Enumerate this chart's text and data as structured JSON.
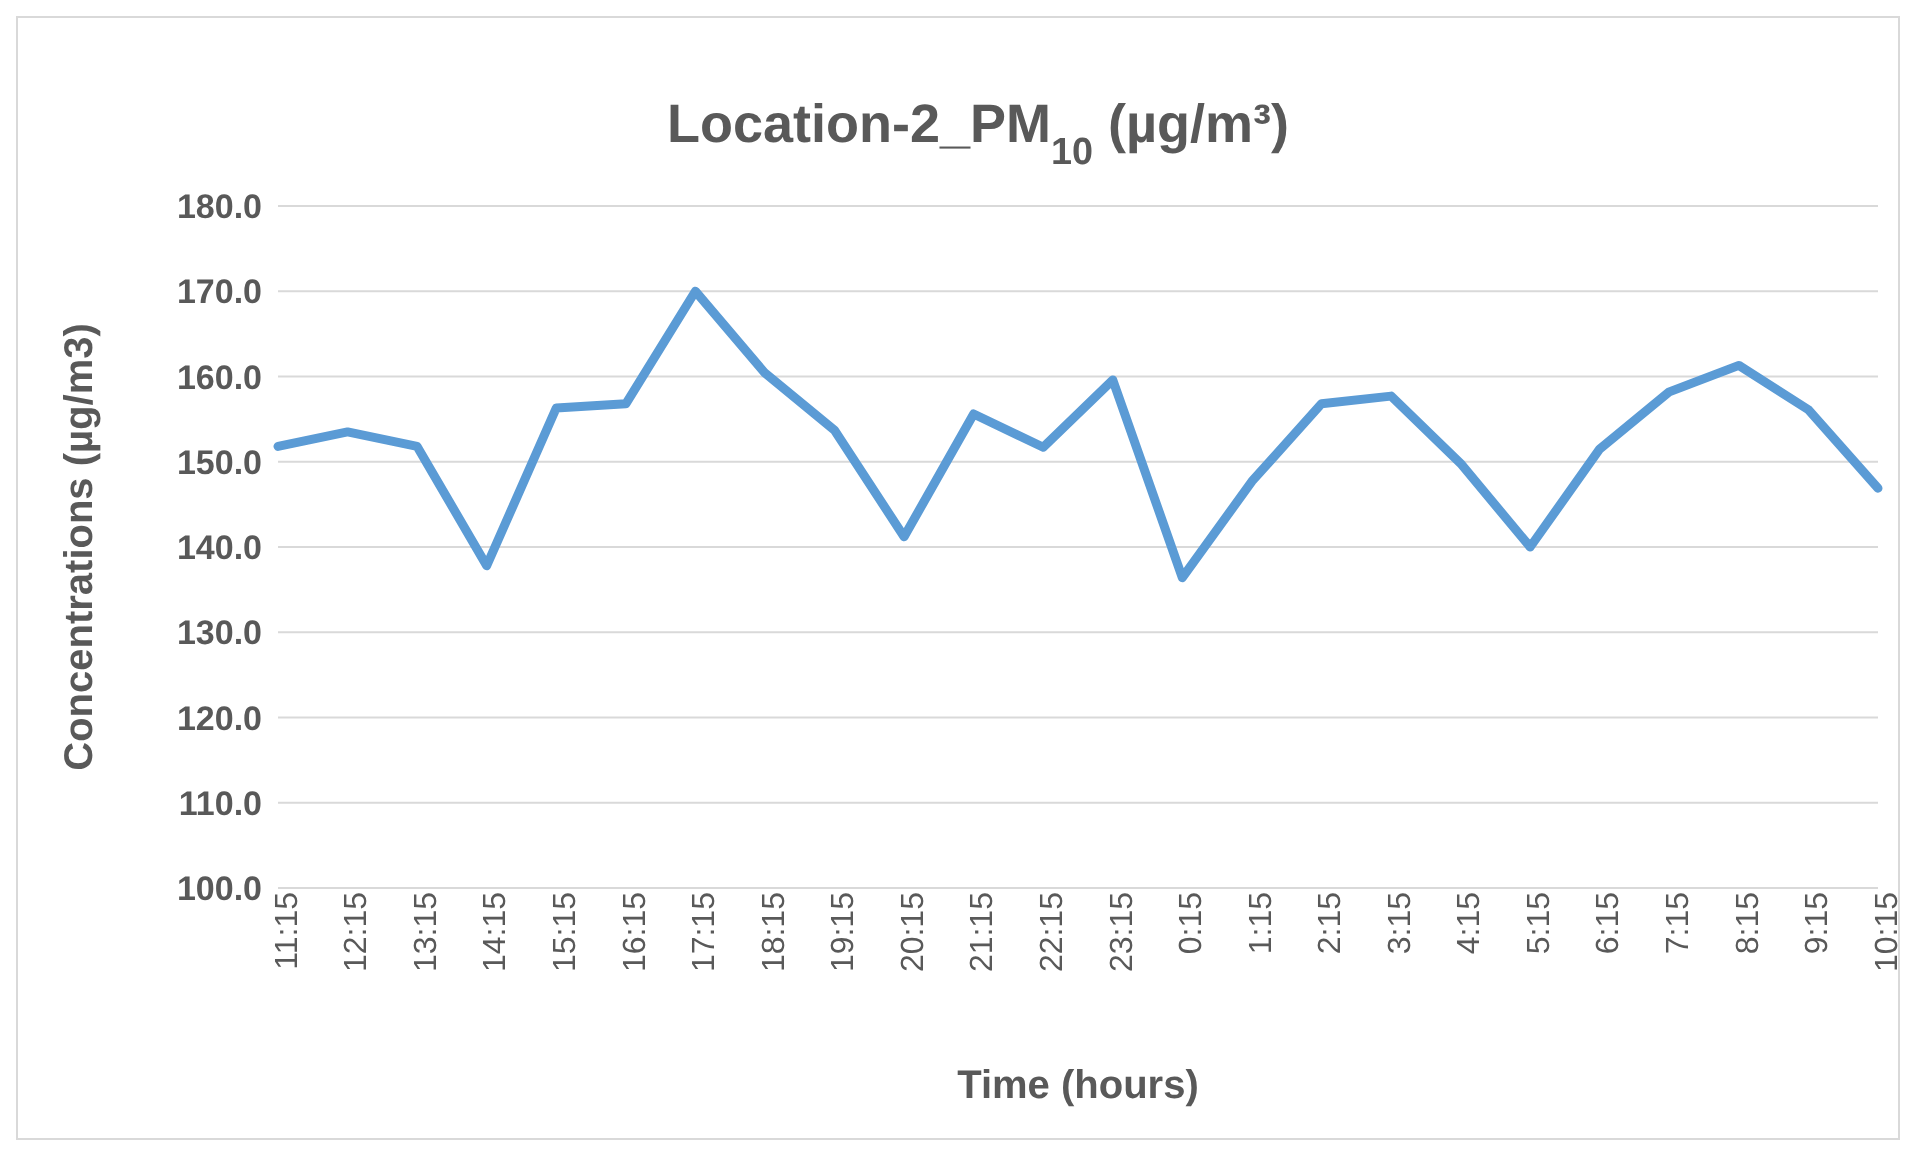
{
  "chart_data": {
    "type": "line",
    "title": "Location-2_PM$_{10}$ (µg/m³)",
    "xlabel": "Time (hours)",
    "ylabel": "Concentrations (µg/m3)",
    "categories": [
      "11:15",
      "12:15",
      "13:15",
      "14:15",
      "15:15",
      "16:15",
      "17:15",
      "18:15",
      "19:15",
      "20:15",
      "21:15",
      "22:15",
      "23:15",
      "0:15",
      "1:15",
      "2:15",
      "3:15",
      "4:15",
      "5:15",
      "6:15",
      "7:15",
      "8:15",
      "9:15",
      "10:15"
    ],
    "series": [
      {
        "color": "#5b9bd5",
        "values": [
          151.8,
          153.5,
          151.8,
          137.8,
          156.3,
          156.8,
          170.0,
          160.4,
          153.7,
          141.2,
          155.6,
          151.7,
          159.6,
          136.4,
          147.7,
          156.8,
          157.7,
          149.8,
          140.0,
          151.5,
          158.2,
          161.3,
          156.1,
          146.9
        ]
      }
    ],
    "ylim": [
      100,
      180
    ],
    "yticks": [
      {
        "value": 100,
        "label": "100.0"
      },
      {
        "value": 110,
        "label": "110.0"
      },
      {
        "value": 120,
        "label": "120.0"
      },
      {
        "value": 130,
        "label": "130.0"
      },
      {
        "value": 140,
        "label": "140.0"
      },
      {
        "value": 150,
        "label": "150.0"
      },
      {
        "value": 160,
        "label": "160.0"
      },
      {
        "value": 170,
        "label": "170.0"
      },
      {
        "value": 180,
        "label": "180.0"
      }
    ],
    "grid": "y",
    "legend": false,
    "marker": "none",
    "line_style": "solid"
  }
}
